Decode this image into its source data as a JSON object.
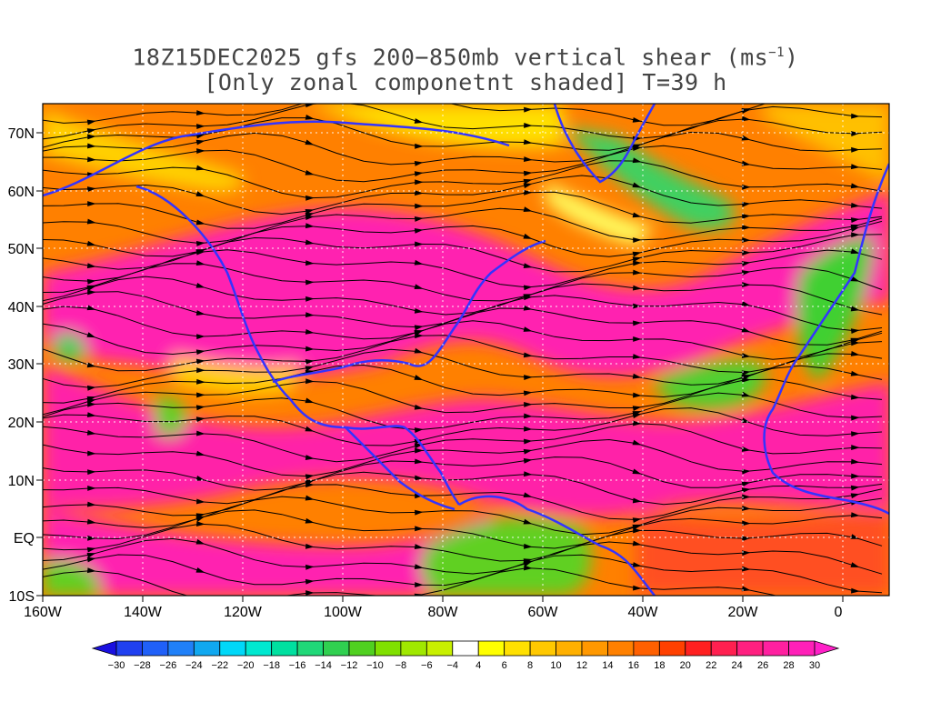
{
  "title": {
    "line1_pre": "18Z15DEC2025 gfs 200−850mb vertical shear (ms",
    "line1_sup": "−1",
    "line1_post": ")",
    "line2": "[Only zonal componetnt shaded] T=39 h"
  },
  "axes": {
    "lat_labels": [
      "70N",
      "60N",
      "50N",
      "40N",
      "30N",
      "20N",
      "10N",
      "EQ",
      "10S"
    ],
    "lon_labels": [
      "160W",
      "140W",
      "120W",
      "100W",
      "80W",
      "60W",
      "40W",
      "20W",
      "0"
    ]
  },
  "colorbar": {
    "labels": [
      "−30",
      "−28",
      "−26",
      "−24",
      "−22",
      "−20",
      "−18",
      "−16",
      "−14",
      "−12",
      "−10",
      "−8",
      "−6",
      "−4",
      "4",
      "6",
      "8",
      "10",
      "12",
      "14",
      "16",
      "18",
      "20",
      "22",
      "24",
      "26",
      "28",
      "30"
    ],
    "colors": [
      "#1a10e0",
      "#2040f0",
      "#2060f8",
      "#2080f8",
      "#10a8f0",
      "#00d8f8",
      "#00e8d0",
      "#00e0a0",
      "#20d878",
      "#30d050",
      "#50d020",
      "#80e000",
      "#a0e800",
      "#c8f000",
      "#ffffff",
      "#ffff00",
      "#ffe000",
      "#ffc800",
      "#ffb000",
      "#ff9800",
      "#ff8000",
      "#ff6000",
      "#ff4000",
      "#ff2020",
      "#ff2050",
      "#ff2080",
      "#ff20a0",
      "#ff20b8",
      "#ff20c8"
    ]
  },
  "colors": {
    "coast": "#3333ff",
    "stream": "#000000",
    "contour": "#8800aa"
  }
}
